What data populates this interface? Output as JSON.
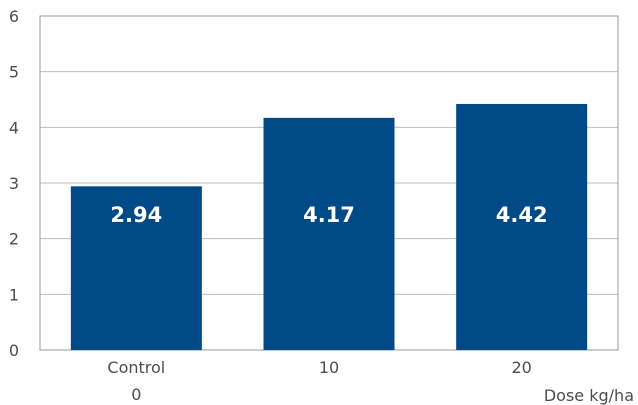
{
  "chart_data": {
    "type": "bar",
    "categories": [
      [
        "Control",
        "0"
      ],
      [
        "10"
      ],
      [
        "20"
      ]
    ],
    "values": [
      2.94,
      4.17,
      4.42
    ],
    "data_labels": [
      "2.94",
      "4.17",
      "4.42"
    ],
    "title": "",
    "xlabel": "Dose kg/ha",
    "ylabel": "",
    "ylim": [
      0,
      6
    ],
    "yticks": [
      "0",
      "1",
      "2",
      "3",
      "4",
      "5",
      "6"
    ],
    "grid": true,
    "legend": "none",
    "colors": {
      "bar": "#004a87",
      "grid": "#bdbdbd",
      "frame": "#9a9a9a",
      "text": "#4d4d4d"
    }
  }
}
